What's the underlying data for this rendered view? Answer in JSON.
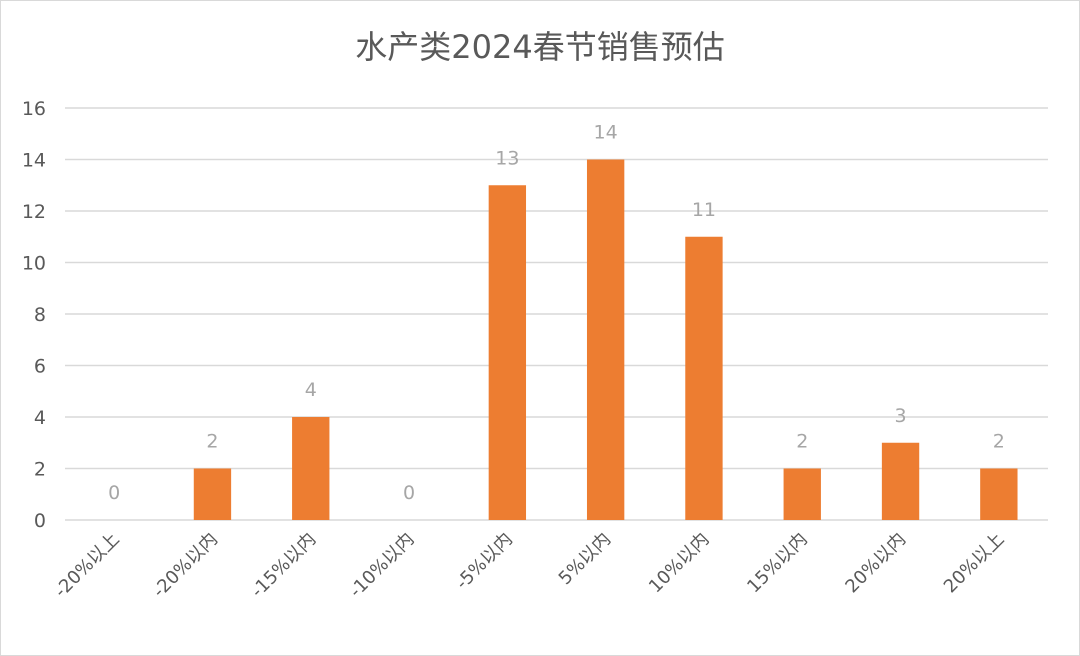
{
  "chart_data": {
    "type": "bar",
    "title": "水产类2024春节销售预估",
    "categories": [
      "-20%以上",
      "-20%以内",
      "-15%以内",
      "-10%以内",
      "-5%以内",
      "5%以内",
      "10%以内",
      "15%以内",
      "20%以内",
      "20%以上"
    ],
    "values": [
      0,
      2,
      4,
      0,
      13,
      14,
      11,
      2,
      3,
      2
    ],
    "yticks": [
      "0",
      "2",
      "4",
      "6",
      "8",
      "10",
      "12",
      "14",
      "16"
    ],
    "ylim": [
      0,
      16
    ],
    "grid": true,
    "legend": "none",
    "data_labels": true,
    "colors": {
      "bar": "#ED7D31",
      "grid": "#d9d9d9",
      "label": "#a6a6a6",
      "text": "#595959"
    }
  }
}
